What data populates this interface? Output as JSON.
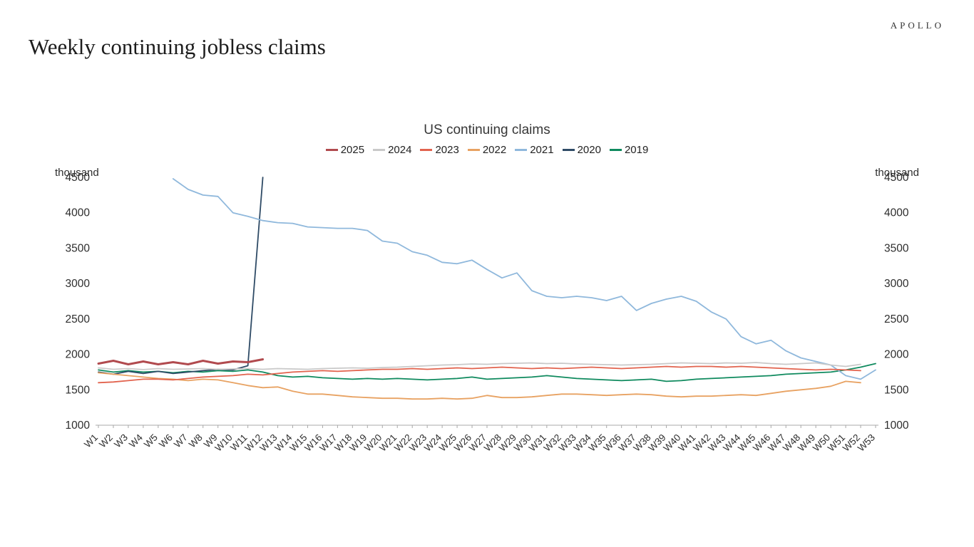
{
  "header": {
    "brand": "APOLLO",
    "title": "Weekly continuing jobless claims"
  },
  "chart_data": {
    "type": "line",
    "title": "US continuing claims",
    "unit": "thousand",
    "ylim": [
      1000,
      4500
    ],
    "yticks": [
      1000,
      1500,
      2000,
      2500,
      3000,
      3500,
      4000,
      4500
    ],
    "grid": false,
    "legend_position": "top-center",
    "categories": [
      "W1",
      "W2",
      "W3",
      "W4",
      "W5",
      "W6",
      "W7",
      "W8",
      "W9",
      "W10",
      "W11",
      "W12",
      "W13",
      "W14",
      "W15",
      "W16",
      "W17",
      "W18",
      "W19",
      "W20",
      "W21",
      "W22",
      "W23",
      "W24",
      "W25",
      "W26",
      "W27",
      "W28",
      "W29",
      "W30",
      "W31",
      "W32",
      "W33",
      "W34",
      "W35",
      "W36",
      "W37",
      "W38",
      "W39",
      "W40",
      "W41",
      "W42",
      "W43",
      "W44",
      "W45",
      "W46",
      "W47",
      "W48",
      "W49",
      "W50",
      "W51",
      "W52",
      "W53"
    ],
    "series": [
      {
        "name": "2025",
        "color": "#b14a4e",
        "width": 3,
        "values": [
          1870,
          1910,
          1860,
          1900,
          1860,
          1890,
          1860,
          1910,
          1870,
          1900,
          1890,
          1930,
          null,
          null,
          null,
          null,
          null,
          null,
          null,
          null,
          null,
          null,
          null,
          null,
          null,
          null,
          null,
          null,
          null,
          null,
          null,
          null,
          null,
          null,
          null,
          null,
          null,
          null,
          null,
          null,
          null,
          null,
          null,
          null,
          null,
          null,
          null,
          null,
          null,
          null,
          null,
          null,
          null
        ]
      },
      {
        "name": "2024",
        "color": "#c9c9c9",
        "width": 1.8,
        "values": [
          1810,
          1790,
          1800,
          1785,
          1800,
          1790,
          1795,
          1800,
          1790,
          1795,
          1800,
          1790,
          1800,
          1795,
          1790,
          1800,
          1805,
          1810,
          1805,
          1815,
          1820,
          1830,
          1840,
          1850,
          1855,
          1865,
          1860,
          1870,
          1875,
          1880,
          1870,
          1875,
          1865,
          1860,
          1855,
          1850,
          1855,
          1860,
          1870,
          1880,
          1875,
          1870,
          1880,
          1875,
          1885,
          1870,
          1860,
          1870,
          1880,
          1850,
          1830,
          1860,
          null
        ]
      },
      {
        "name": "2023",
        "color": "#e2634e",
        "width": 1.8,
        "values": [
          1600,
          1610,
          1630,
          1650,
          1650,
          1640,
          1660,
          1680,
          1690,
          1700,
          1720,
          1710,
          1730,
          1750,
          1760,
          1770,
          1760,
          1770,
          1780,
          1790,
          1790,
          1800,
          1790,
          1800,
          1810,
          1800,
          1810,
          1820,
          1810,
          1800,
          1810,
          1800,
          1810,
          1820,
          1810,
          1800,
          1810,
          1820,
          1830,
          1820,
          1830,
          1830,
          1820,
          1830,
          1820,
          1810,
          1800,
          1790,
          1780,
          1790,
          1780,
          1770,
          null
        ]
      },
      {
        "name": "2022",
        "color": "#e8a262",
        "width": 1.8,
        "values": [
          1740,
          1720,
          1700,
          1680,
          1660,
          1650,
          1630,
          1650,
          1640,
          1600,
          1560,
          1530,
          1540,
          1480,
          1440,
          1440,
          1420,
          1400,
          1390,
          1380,
          1380,
          1370,
          1370,
          1380,
          1370,
          1380,
          1420,
          1390,
          1390,
          1400,
          1420,
          1440,
          1440,
          1430,
          1420,
          1430,
          1440,
          1430,
          1410,
          1400,
          1410,
          1410,
          1420,
          1430,
          1420,
          1450,
          1480,
          1500,
          1520,
          1550,
          1620,
          1600,
          null
        ]
      },
      {
        "name": "2021",
        "color": "#8fb8dc",
        "width": 1.8,
        "values": [
          null,
          null,
          null,
          null,
          null,
          4480,
          4330,
          4250,
          4230,
          4000,
          3950,
          3890,
          3860,
          3850,
          3800,
          3790,
          3780,
          3780,
          3750,
          3600,
          3570,
          3450,
          3400,
          3300,
          3280,
          3330,
          3200,
          3080,
          3150,
          2900,
          2820,
          2800,
          2820,
          2800,
          2760,
          2820,
          2620,
          2720,
          2780,
          2820,
          2750,
          2600,
          2500,
          2250,
          2150,
          2200,
          2050,
          1950,
          1900,
          1850,
          1700,
          1650,
          1780
        ]
      },
      {
        "name": "2020",
        "color": "#2f4b66",
        "width": 1.8,
        "values": [
          1750,
          1720,
          1760,
          1730,
          1760,
          1730,
          1750,
          1770,
          1790,
          1780,
          1840,
          4500,
          null,
          null,
          null,
          null,
          null,
          null,
          null,
          null,
          null,
          null,
          null,
          null,
          null,
          null,
          null,
          null,
          null,
          null,
          null,
          null,
          null,
          null,
          null,
          null,
          null,
          null,
          null,
          null,
          null,
          null,
          null,
          null,
          null,
          null,
          null,
          null,
          null,
          null,
          null,
          null,
          null
        ]
      },
      {
        "name": "2019",
        "color": "#0f8a5e",
        "width": 1.8,
        "values": [
          1780,
          1750,
          1770,
          1750,
          1760,
          1740,
          1760,
          1750,
          1770,
          1760,
          1780,
          1750,
          1700,
          1680,
          1690,
          1670,
          1660,
          1650,
          1660,
          1650,
          1660,
          1650,
          1640,
          1650,
          1660,
          1680,
          1650,
          1660,
          1670,
          1680,
          1700,
          1680,
          1660,
          1650,
          1640,
          1630,
          1640,
          1650,
          1620,
          1630,
          1650,
          1660,
          1670,
          1680,
          1690,
          1700,
          1720,
          1730,
          1740,
          1750,
          1780,
          1820,
          1870
        ]
      }
    ]
  }
}
